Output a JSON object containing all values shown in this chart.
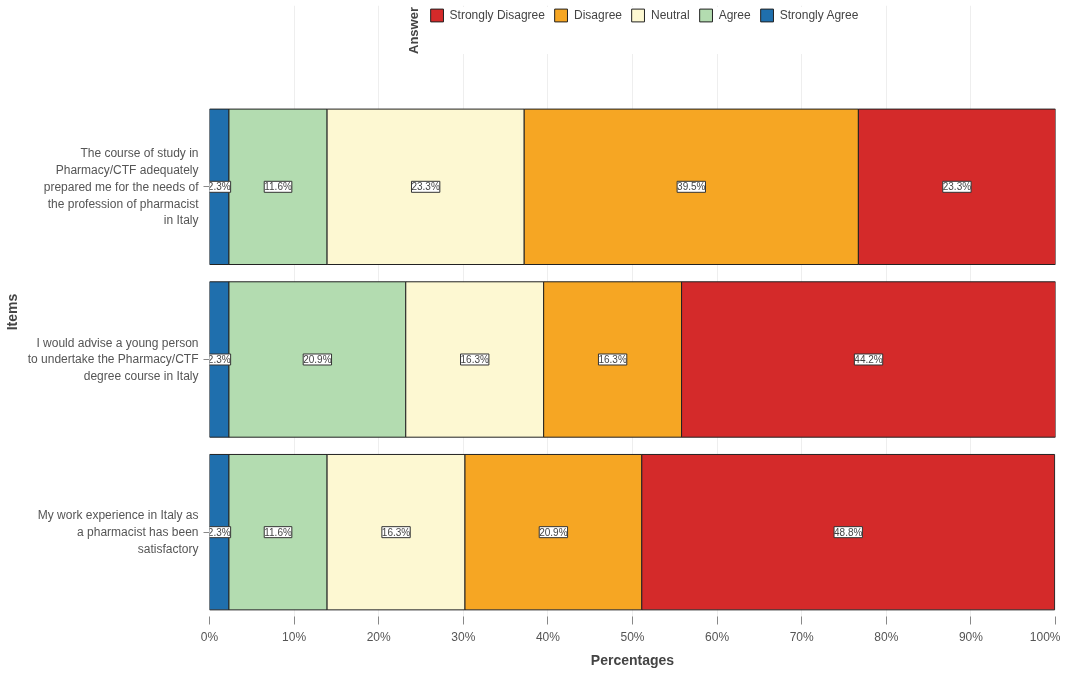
{
  "chart_data": {
    "type": "bar",
    "orientation": "horizontal",
    "stacked": true,
    "xlabel": "Percentages",
    "ylabel": "Items",
    "legend_title": "Answer",
    "legend": "top",
    "categories": [
      "The course of study in Pharmacy/CTF adequately prepared me for the needs of the profession of pharmacist in Italy",
      "I would advise a young person to undertake the Pharmacy/CTF degree course in Italy",
      "My work experience in Italy as a pharmacist has been satisfactory"
    ],
    "series": [
      {
        "name": "Strongly Agree",
        "color": "#1f6fad",
        "values": [
          2.3,
          2.3,
          2.3
        ],
        "value_labels": [
          "2.3%",
          "2.3%",
          "2.3%"
        ]
      },
      {
        "name": "Agree",
        "color": "#b3dcb0",
        "values": [
          11.6,
          20.9,
          11.6
        ],
        "value_labels": [
          "11.6%",
          "20.9%",
          "11.6%"
        ]
      },
      {
        "name": "Neutral",
        "color": "#fdf8d2",
        "values": [
          23.3,
          16.3,
          16.3
        ],
        "value_labels": [
          "23.3%",
          "16.3%",
          "16.3%"
        ]
      },
      {
        "name": "Disagree",
        "color": "#f6a623",
        "values": [
          39.5,
          16.3,
          20.9
        ],
        "value_labels": [
          "39.5%",
          "16.3%",
          "20.9%"
        ]
      },
      {
        "name": "Strongly Disagree",
        "color": "#d42a2a",
        "values": [
          23.3,
          44.2,
          48.8
        ],
        "value_labels": [
          "23.3%",
          "44.2%",
          "48.8%"
        ]
      }
    ],
    "xlim": [
      0,
      100
    ],
    "xticks": [
      {
        "value": 0,
        "label": "0%"
      },
      {
        "value": 10,
        "label": "10%"
      },
      {
        "value": 20,
        "label": "20%"
      },
      {
        "value": 30,
        "label": "30%"
      },
      {
        "value": 40,
        "label": "40%"
      },
      {
        "value": 50,
        "label": "50%"
      },
      {
        "value": 60,
        "label": "60%"
      },
      {
        "value": 70,
        "label": "70%"
      },
      {
        "value": 80,
        "label": "80%"
      },
      {
        "value": 90,
        "label": "90%"
      },
      {
        "value": 100,
        "label": "100%"
      }
    ],
    "grid": true
  }
}
